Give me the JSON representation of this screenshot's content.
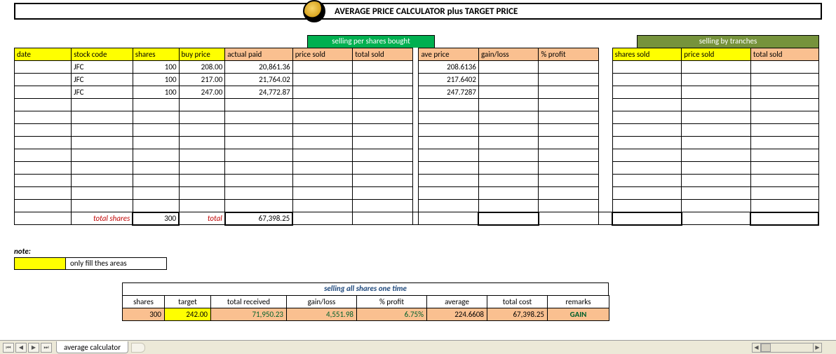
{
  "title": "AVERAGE PRICE CALCULATOR plus TARGET PRICE",
  "section_headers": {
    "per_shares": "selling per shares bought",
    "by_tranches": "selling by tranches"
  },
  "colors": {
    "yellow": "#ffff00",
    "orange": "#fac090",
    "green_bright": "#00b050",
    "green_olive": "#76933c",
    "red_text": "#c00000",
    "green_text": "#00602b",
    "blue_text": "#1f497d"
  },
  "columns": {
    "date": "date",
    "stock_code": "stock code",
    "shares": "shares",
    "buy_price": "buy price",
    "actual_paid": "actual paid",
    "price_sold": "price sold",
    "total_sold": "total sold",
    "ave_price": "ave price",
    "gain_loss": "gain/loss",
    "pct_profit": "% profit",
    "shares_sold": "shares sold",
    "price_sold2": "price sold",
    "total_sold2": "total sold"
  },
  "rows": [
    {
      "date": "",
      "stock": "JFC",
      "shares": "100",
      "buy": "208.00",
      "paid": "20,861.36",
      "psold": "",
      "tsold": "",
      "ave": "208.6136",
      "gl": "",
      "pp": "",
      "ss": "",
      "ps2": "",
      "ts2": ""
    },
    {
      "date": "",
      "stock": "JFC",
      "shares": "100",
      "buy": "217.00",
      "paid": "21,764.02",
      "psold": "",
      "tsold": "",
      "ave": "217.6402",
      "gl": "",
      "pp": "",
      "ss": "",
      "ps2": "",
      "ts2": ""
    },
    {
      "date": "",
      "stock": "JFC",
      "shares": "100",
      "buy": "247.00",
      "paid": "24,772.87",
      "psold": "",
      "tsold": "",
      "ave": "247.7287",
      "gl": "",
      "pp": "",
      "ss": "",
      "ps2": "",
      "ts2": ""
    },
    {
      "date": "",
      "stock": "",
      "shares": "",
      "buy": "",
      "paid": "",
      "psold": "",
      "tsold": "",
      "ave": "",
      "gl": "",
      "pp": "",
      "ss": "",
      "ps2": "",
      "ts2": ""
    },
    {
      "date": "",
      "stock": "",
      "shares": "",
      "buy": "",
      "paid": "",
      "psold": "",
      "tsold": "",
      "ave": "",
      "gl": "",
      "pp": "",
      "ss": "",
      "ps2": "",
      "ts2": ""
    },
    {
      "date": "",
      "stock": "",
      "shares": "",
      "buy": "",
      "paid": "",
      "psold": "",
      "tsold": "",
      "ave": "",
      "gl": "",
      "pp": "",
      "ss": "",
      "ps2": "",
      "ts2": ""
    },
    {
      "date": "",
      "stock": "",
      "shares": "",
      "buy": "",
      "paid": "",
      "psold": "",
      "tsold": "",
      "ave": "",
      "gl": "",
      "pp": "",
      "ss": "",
      "ps2": "",
      "ts2": ""
    },
    {
      "date": "",
      "stock": "",
      "shares": "",
      "buy": "",
      "paid": "",
      "psold": "",
      "tsold": "",
      "ave": "",
      "gl": "",
      "pp": "",
      "ss": "",
      "ps2": "",
      "ts2": ""
    },
    {
      "date": "",
      "stock": "",
      "shares": "",
      "buy": "",
      "paid": "",
      "psold": "",
      "tsold": "",
      "ave": "",
      "gl": "",
      "pp": "",
      "ss": "",
      "ps2": "",
      "ts2": ""
    },
    {
      "date": "",
      "stock": "",
      "shares": "",
      "buy": "",
      "paid": "",
      "psold": "",
      "tsold": "",
      "ave": "",
      "gl": "",
      "pp": "",
      "ss": "",
      "ps2": "",
      "ts2": ""
    },
    {
      "date": "",
      "stock": "",
      "shares": "",
      "buy": "",
      "paid": "",
      "psold": "",
      "tsold": "",
      "ave": "",
      "gl": "",
      "pp": "",
      "ss": "",
      "ps2": "",
      "ts2": ""
    },
    {
      "date": "",
      "stock": "",
      "shares": "",
      "buy": "",
      "paid": "",
      "psold": "",
      "tsold": "",
      "ave": "",
      "gl": "",
      "pp": "",
      "ss": "",
      "ps2": "",
      "ts2": ""
    }
  ],
  "totals": {
    "total_shares_label": "total shares",
    "total_shares": "300",
    "total_label": "total",
    "total_paid": "67,398.25"
  },
  "note": {
    "label": "note:",
    "text": "only fill thes areas"
  },
  "summary": {
    "title": "selling all shares one time",
    "headers": {
      "shares": "shares",
      "target": "target",
      "total_received": "total received",
      "gain_loss": "gain/loss",
      "pct_profit": "% profit",
      "average": "average",
      "total_cost": "total cost",
      "remarks": "remarks"
    },
    "values": {
      "shares": "300",
      "target": "242.00",
      "total_received": "71,950.23",
      "gain_loss": "4,551.98",
      "pct_profit": "6.75%",
      "average": "224.6608",
      "total_cost": "67,398.25",
      "remarks": "GAIN"
    }
  },
  "tab": {
    "name": "average calculator"
  }
}
